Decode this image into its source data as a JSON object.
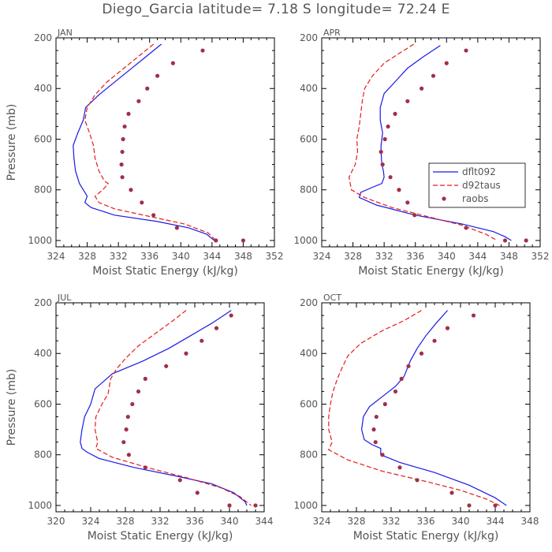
{
  "title": "Diego_Garcia   latitude= 7.18 S longitude= 72.24 E",
  "colors": {
    "model1": "#1a1ae6",
    "model2": "#e61a1a",
    "obs": "#a0304a",
    "text": "#555555"
  },
  "chart_data": [
    {
      "type": "line",
      "panel": "JAN",
      "title": "JAN",
      "xlabel": "Moist Static Energy (kJ/kg)",
      "ylabel": "Pressure (mb)",
      "xlim": [
        324,
        352
      ],
      "ylim": [
        1025,
        200
      ],
      "xticks": [
        324,
        328,
        332,
        336,
        340,
        344,
        348,
        352
      ],
      "yticks": [
        200,
        400,
        600,
        800,
        1000
      ],
      "series": [
        {
          "name": "dflt092",
          "style": "solid",
          "x": [
            337.5,
            335.5,
            333.5,
            331.5,
            329.5,
            327.8,
            327.5,
            326.8,
            326.2,
            326.3,
            326.5,
            327.0,
            327.5,
            328.0,
            327.7,
            328.5,
            331.5,
            337.0,
            341.0,
            343.3,
            344.3
          ],
          "y": [
            225,
            275,
            325,
            375,
            425,
            475,
            525,
            575,
            625,
            675,
            725,
            775,
            800,
            825,
            850,
            870,
            900,
            925,
            950,
            975,
            1000
          ]
        },
        {
          "name": "d92taus",
          "style": "dashed",
          "x": [
            336.5,
            334.5,
            332.5,
            330.5,
            329.0,
            328.0,
            327.7,
            328.3,
            328.8,
            329.0,
            329.5,
            330.2,
            330.7,
            330.0,
            329.0,
            329.5,
            331.5,
            336.0,
            340.5,
            343.5,
            344.5
          ],
          "y": [
            225,
            275,
            325,
            375,
            425,
            475,
            525,
            575,
            625,
            675,
            725,
            765,
            775,
            800,
            825,
            850,
            875,
            905,
            935,
            970,
            1000
          ]
        },
        {
          "name": "raobs",
          "style": "markers",
          "x": [
            342.8,
            339.0,
            337.0,
            335.7,
            334.6,
            333.3,
            332.8,
            332.6,
            332.5,
            332.4,
            332.5,
            333.6,
            335.0,
            336.5,
            339.5,
            344.5,
            348.0
          ],
          "y": [
            250,
            300,
            350,
            400,
            450,
            500,
            550,
            600,
            650,
            700,
            750,
            800,
            850,
            900,
            950,
            1000,
            1000
          ]
        }
      ]
    },
    {
      "type": "line",
      "panel": "APR",
      "title": "APR",
      "xlabel": "Moist Static Energy (kJ/kg)",
      "ylabel": "",
      "xlim": [
        324,
        352
      ],
      "ylim": [
        1025,
        200
      ],
      "xticks": [
        324,
        328,
        332,
        336,
        340,
        344,
        348,
        352
      ],
      "yticks": [
        200,
        400,
        600,
        800,
        1000
      ],
      "legend": [
        "dflt092",
        "d92taus",
        "raobs"
      ],
      "series": [
        {
          "name": "dflt092",
          "style": "solid",
          "x": [
            339.2,
            337.0,
            335.0,
            333.5,
            332.0,
            331.5,
            331.5,
            331.8,
            331.6,
            331.6,
            331.7,
            331.9,
            332.0,
            331.7,
            330.5,
            329.0,
            328.8,
            331.0,
            336.0,
            342.0,
            346.0,
            347.5,
            348.3
          ],
          "y": [
            230,
            275,
            320,
            370,
            420,
            475,
            525,
            575,
            625,
            650,
            700,
            725,
            750,
            775,
            790,
            810,
            830,
            860,
            900,
            935,
            965,
            985,
            1000
          ]
        },
        {
          "name": "d92taus",
          "style": "dashed",
          "x": [
            335.8,
            334.0,
            332.0,
            330.5,
            329.5,
            329.2,
            329.0,
            328.8,
            328.5,
            328.6,
            328.3,
            327.5,
            327.8,
            329.5,
            333.0,
            337.5,
            342.0,
            345.0,
            346.5
          ],
          "y": [
            225,
            260,
            300,
            350,
            400,
            450,
            500,
            550,
            600,
            650,
            700,
            750,
            800,
            830,
            870,
            905,
            940,
            975,
            1000
          ]
        },
        {
          "name": "raobs",
          "style": "markers",
          "x": [
            342.5,
            340.0,
            338.3,
            336.8,
            335.0,
            333.4,
            332.5,
            332.1,
            331.6,
            331.8,
            332.8,
            333.9,
            335.0,
            335.9,
            342.5,
            347.5,
            350.2
          ],
          "y": [
            250,
            300,
            350,
            400,
            450,
            500,
            550,
            600,
            650,
            700,
            750,
            800,
            850,
            900,
            950,
            1000,
            1000
          ]
        }
      ]
    },
    {
      "type": "line",
      "panel": "JUL",
      "title": "JUL",
      "xlabel": "Moist Static Energy (kJ/kg)",
      "ylabel": "Pressure (mb)",
      "xlim": [
        320,
        344
      ],
      "ylim": [
        1025,
        200
      ],
      "xticks": [
        320,
        324,
        328,
        332,
        336,
        340,
        344
      ],
      "yticks": [
        200,
        400,
        600,
        800,
        1000
      ],
      "series": [
        {
          "name": "dflt092",
          "style": "solid",
          "x": [
            340.2,
            338.0,
            335.5,
            333.0,
            330.0,
            326.5,
            324.5,
            324.0,
            323.3,
            323.0,
            322.8,
            323.0,
            323.6,
            325.0,
            329.0,
            334.0,
            338.0,
            340.5,
            341.8,
            342.0
          ],
          "y": [
            230,
            280,
            330,
            380,
            430,
            480,
            540,
            600,
            650,
            700,
            750,
            775,
            790,
            815,
            850,
            885,
            915,
            950,
            985,
            1000
          ]
        },
        {
          "name": "d92taus",
          "style": "dashed",
          "x": [
            335.0,
            333.5,
            331.5,
            329.5,
            328.0,
            327.0,
            326.3,
            326.0,
            325.3,
            324.6,
            324.5,
            324.8,
            324.6,
            326.5,
            330.5,
            335.0,
            339.0,
            341.2,
            342.5
          ],
          "y": [
            230,
            270,
            320,
            370,
            420,
            460,
            500,
            560,
            600,
            650,
            700,
            750,
            775,
            810,
            850,
            890,
            930,
            965,
            1000
          ]
        },
        {
          "name": "raobs",
          "style": "markers",
          "x": [
            340.2,
            338.5,
            336.8,
            335.0,
            332.7,
            330.3,
            329.5,
            328.8,
            328.3,
            328.1,
            327.8,
            328.4,
            330.3,
            334.3,
            336.3,
            340.0,
            343.0
          ],
          "y": [
            250,
            300,
            350,
            400,
            450,
            500,
            550,
            600,
            650,
            700,
            750,
            800,
            850,
            900,
            950,
            1000,
            1000
          ]
        }
      ]
    },
    {
      "type": "line",
      "panel": "OCT",
      "title": "OCT",
      "xlabel": "Moist Static Energy (kJ/kg)",
      "ylabel": "",
      "xlim": [
        324,
        348
      ],
      "ylim": [
        1025,
        200
      ],
      "xticks": [
        324,
        328,
        332,
        336,
        340,
        344,
        348
      ],
      "yticks": [
        200,
        400,
        600,
        800,
        1000
      ],
      "series": [
        {
          "name": "dflt092",
          "style": "solid",
          "x": [
            338.5,
            337.2,
            336.0,
            335.0,
            334.2,
            333.5,
            332.5,
            331.0,
            329.5,
            328.8,
            328.6,
            328.9,
            329.8,
            330.8,
            330.8,
            333.0,
            337.0,
            341.0,
            344.0,
            345.3
          ],
          "y": [
            230,
            280,
            330,
            380,
            430,
            490,
            530,
            570,
            610,
            650,
            700,
            740,
            760,
            775,
            800,
            830,
            870,
            920,
            970,
            1000
          ]
        },
        {
          "name": "d92taus",
          "style": "dashed",
          "x": [
            335.5,
            333.5,
            331.0,
            328.5,
            327.0,
            326.3,
            325.8,
            325.3,
            325.0,
            324.8,
            324.8,
            325.2,
            324.8,
            327.0,
            331.0,
            336.0,
            340.0,
            343.0,
            344.5
          ],
          "y": [
            230,
            270,
            310,
            360,
            410,
            460,
            500,
            550,
            600,
            650,
            700,
            750,
            780,
            820,
            865,
            905,
            940,
            975,
            1000
          ]
        },
        {
          "name": "raobs",
          "style": "markers",
          "x": [
            341.5,
            338.5,
            337.0,
            335.5,
            334.0,
            333.2,
            332.5,
            331.3,
            330.3,
            330.0,
            330.2,
            331.0,
            333.0,
            335.0,
            339.0,
            341.0,
            344.0
          ],
          "y": [
            250,
            300,
            350,
            400,
            450,
            500,
            550,
            600,
            650,
            700,
            750,
            800,
            850,
            900,
            950,
            1000,
            1000
          ]
        }
      ]
    }
  ]
}
